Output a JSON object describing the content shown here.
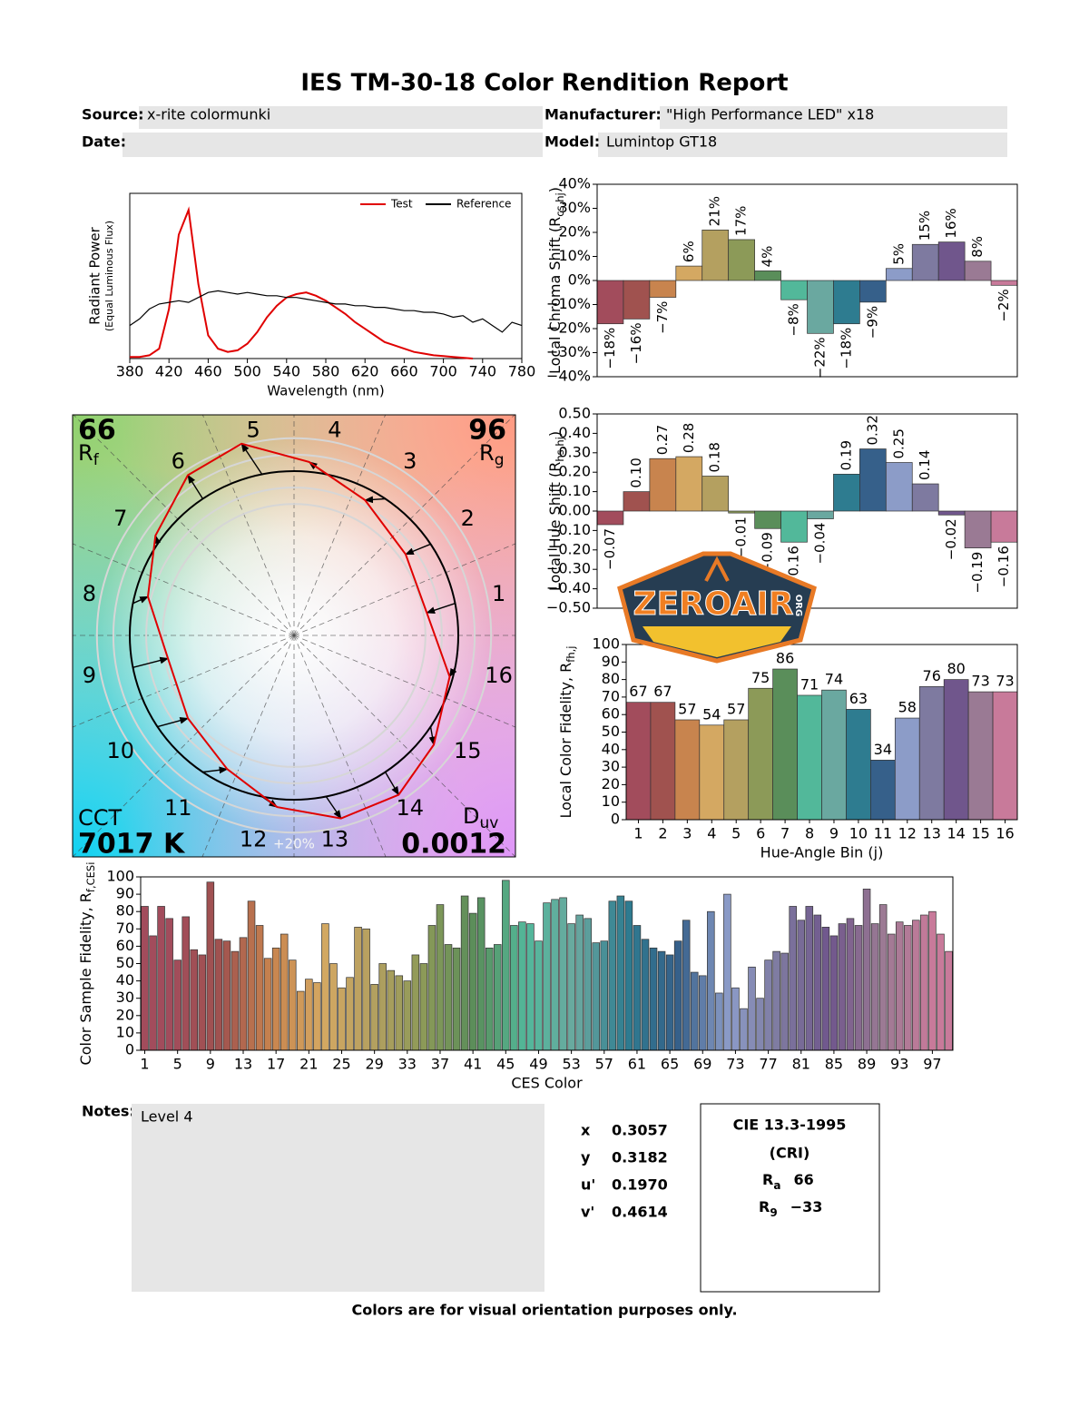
{
  "title": "IES TM-30-18 Color Rendition Report",
  "header": {
    "source_label": "Source:",
    "source": "x-rite colormunki",
    "manufacturer_label": "Manufacturer:",
    "manufacturer": "\"High Performance LED\" x18",
    "date_label": "Date:",
    "model_label": "Model:",
    "model": "Lumintop GT18"
  },
  "chart_data": [
    {
      "type": "line",
      "x": [
        380,
        390,
        400,
        410,
        420,
        430,
        440,
        450,
        460,
        470,
        480,
        490,
        500,
        510,
        520,
        530,
        540,
        550,
        560,
        570,
        580,
        590,
        600,
        610,
        620,
        630,
        640,
        650,
        660,
        670,
        680,
        690,
        700,
        710,
        720,
        730,
        740,
        750,
        760,
        770,
        780
      ],
      "series": [
        {
          "name": "Test",
          "color": "#e00000",
          "values": [
            0.01,
            0.01,
            0.02,
            0.06,
            0.3,
            0.75,
            0.9,
            0.45,
            0.14,
            0.06,
            0.04,
            0.05,
            0.09,
            0.16,
            0.25,
            0.32,
            0.37,
            0.39,
            0.4,
            0.38,
            0.35,
            0.31,
            0.27,
            0.22,
            0.18,
            0.14,
            0.1,
            0.08,
            0.06,
            0.04,
            0.03,
            0.02,
            0.015,
            0.01,
            0.005,
            0,
            null,
            null,
            null,
            null,
            null
          ]
        },
        {
          "name": "Reference",
          "color": "#000000",
          "values": [
            0.2,
            0.24,
            0.3,
            0.33,
            0.34,
            0.35,
            0.34,
            0.37,
            0.4,
            0.41,
            0.4,
            0.39,
            0.4,
            0.39,
            0.38,
            0.38,
            0.37,
            0.37,
            0.36,
            0.35,
            0.34,
            0.33,
            0.33,
            0.32,
            0.32,
            0.31,
            0.31,
            0.3,
            0.29,
            0.29,
            0.28,
            0.28,
            0.27,
            0.25,
            0.26,
            0.22,
            0.24,
            0.2,
            0.16,
            0.22,
            0.2
          ]
        }
      ],
      "xlim": [
        380,
        780
      ],
      "xticks": [
        380,
        420,
        460,
        500,
        540,
        580,
        620,
        660,
        700,
        740,
        780
      ],
      "ylim": [
        0,
        1
      ],
      "xlabel": "Wavelength (nm)",
      "ylabel": "Radiant Power",
      "ylabel2": "(Equal Luminous Flux)",
      "legend": "upper right"
    },
    {
      "type": "vector",
      "rf": 66,
      "rf_label": "R",
      "rf_sub": "f",
      "rg": 96,
      "rg_label": "R",
      "rg_sub": "g",
      "cct_label": "CCT",
      "cct": "7017 K",
      "duv_label": "D",
      "duv_sub": "uv",
      "duv": 0.0012,
      "scale_label": "+20%"
    },
    {
      "type": "bar",
      "values": [
        -18,
        -16,
        -7,
        6,
        21,
        17,
        4,
        -8,
        -22,
        -18,
        -9,
        5,
        15,
        16,
        8,
        -2
      ],
      "value_labels": [
        "−18%",
        "−16%",
        "−7%",
        "6%",
        "21%",
        "17%",
        "4%",
        "−8%",
        "−22%",
        "−18%",
        "−9%",
        "5%",
        "15%",
        "16%",
        "8%",
        "−2%"
      ],
      "ylim": [
        -40,
        40
      ],
      "yticks": [
        {
          "value": -40,
          "label": "−40%"
        },
        {
          "value": -30,
          "label": "−30%"
        },
        {
          "value": -20,
          "label": "−20%"
        },
        {
          "value": -10,
          "label": "−10%"
        },
        {
          "value": 0,
          "label": "0%"
        },
        {
          "value": 10,
          "label": "10%"
        },
        {
          "value": 20,
          "label": "20%"
        },
        {
          "value": 30,
          "label": "30%"
        },
        {
          "value": 40,
          "label": "40%"
        }
      ],
      "ylabel": "Local Chroma Shift (R",
      "ylabel_sub": "cs,hj",
      "ylabel_end": ")"
    },
    {
      "type": "bar",
      "values": [
        -0.07,
        0.1,
        0.27,
        0.28,
        0.18,
        -0.01,
        -0.09,
        -0.16,
        -0.04,
        0.19,
        0.32,
        0.25,
        0.14,
        -0.02,
        -0.19,
        -0.16
      ],
      "value_labels": [
        "−0.07",
        "0.10",
        "0.27",
        "0.28",
        "0.18",
        "−0.01",
        "−0.09",
        "−0.16",
        "−0.04",
        "0.19",
        "0.32",
        "0.25",
        "0.14",
        "−0.02",
        "−0.19",
        "−0.16"
      ],
      "ylim": [
        -0.5,
        0.5
      ],
      "yticks": [
        {
          "value": -0.5,
          "label": "−0.50"
        },
        {
          "value": -0.4,
          "label": "−0.40"
        },
        {
          "value": -0.3,
          "label": "−0.30"
        },
        {
          "value": -0.2,
          "label": "−0.20"
        },
        {
          "value": -0.1,
          "label": "−0.10"
        },
        {
          "value": 0,
          "label": "0.00"
        },
        {
          "value": 0.1,
          "label": "0.10"
        },
        {
          "value": 0.2,
          "label": "0.20"
        },
        {
          "value": 0.3,
          "label": "0.30"
        },
        {
          "value": 0.4,
          "label": "0.40"
        },
        {
          "value": 0.5,
          "label": "0.50"
        }
      ],
      "ylabel": "Local Hue Shift (R",
      "ylabel_sub": "hs,hj",
      "ylabel_end": ")"
    },
    {
      "type": "bar",
      "categories": [
        1,
        2,
        3,
        4,
        5,
        6,
        7,
        8,
        9,
        10,
        11,
        12,
        13,
        14,
        15,
        16
      ],
      "values": [
        67,
        67,
        57,
        54,
        57,
        75,
        86,
        71,
        74,
        63,
        34,
        58,
        76,
        80,
        73,
        73
      ],
      "colors": [
        "#a24c5c",
        "#a0524f",
        "#c8844e",
        "#d4a862",
        "#b4a060",
        "#8c9a58",
        "#5a8e5a",
        "#52b89a",
        "#6aa8a0",
        "#2e7c90",
        "#36608a",
        "#8c9cc8",
        "#7e7aa0",
        "#70568c",
        "#9a7a94",
        "#c87a9a"
      ],
      "ylim": [
        0,
        100
      ],
      "yticks": [
        0,
        10,
        20,
        30,
        40,
        50,
        60,
        70,
        80,
        90,
        100
      ],
      "xlabel": "Hue-Angle Bin (j)",
      "ylabel": "Local Color Fidelity, R",
      "ylabel_sub": "fh,j"
    },
    {
      "type": "bar",
      "categories": [
        1,
        null,
        null,
        null,
        5,
        null,
        null,
        null,
        9,
        null,
        null,
        null,
        13,
        null,
        null,
        null,
        17,
        null,
        null,
        null,
        21,
        null,
        null,
        null,
        25,
        null,
        null,
        null,
        29,
        null,
        null,
        null,
        33,
        null,
        null,
        null,
        37,
        null,
        null,
        null,
        41,
        null,
        null,
        null,
        45,
        null,
        null,
        null,
        49,
        null,
        null,
        null,
        53,
        null,
        null,
        null,
        57,
        null,
        null,
        null,
        61,
        null,
        null,
        null,
        65,
        null,
        null,
        null,
        69,
        null,
        null,
        null,
        73,
        null,
        null,
        null,
        77,
        null,
        null,
        null,
        81,
        null,
        null,
        null,
        85,
        null,
        null,
        null,
        89,
        null,
        null,
        null,
        93,
        null,
        null,
        null,
        97,
        null,
        null
      ],
      "values": [
        83,
        66,
        83,
        76,
        52,
        77,
        58,
        55,
        97,
        64,
        63,
        57,
        65,
        86,
        72,
        53,
        59,
        67,
        52,
        34,
        41,
        39,
        73,
        50,
        36,
        42,
        71,
        70,
        38,
        50,
        46,
        43,
        40,
        55,
        50,
        72,
        84,
        61,
        59,
        89,
        79,
        88,
        59,
        61,
        98,
        72,
        74,
        73,
        63,
        85,
        87,
        88,
        73,
        78,
        76,
        62,
        63,
        86,
        89,
        86,
        72,
        64,
        59,
        57,
        55,
        63,
        75,
        45,
        43,
        80,
        33,
        90,
        36,
        24,
        48,
        30,
        52,
        57,
        56,
        83,
        75,
        83,
        78,
        71,
        66,
        73,
        76,
        72,
        93,
        73,
        84,
        67,
        74,
        72,
        75,
        78,
        80,
        67,
        57
      ],
      "ylim": [
        0,
        100
      ],
      "yticks": [
        0,
        10,
        20,
        30,
        40,
        50,
        60,
        70,
        80,
        90,
        100
      ],
      "xlabel": "CES Color",
      "ylabel": "Color Sample Fidelity, R",
      "ylabel_sub": "f,CESi"
    }
  ],
  "notes": {
    "label": "Notes:",
    "text": "Level 4"
  },
  "chromaticity": [
    {
      "label": "x",
      "value": "0.3057"
    },
    {
      "label": "y",
      "value": "0.3182"
    },
    {
      "label": "u'",
      "value": "0.1970"
    },
    {
      "label": "v'",
      "value": "0.4614"
    }
  ],
  "cri": {
    "title": "CIE 13.3-1995",
    "subtitle": "(CRI)",
    "ra_label": "R",
    "ra_sub": "a",
    "ra": "66",
    "r9_label": "R",
    "r9_sub": "9",
    "r9": "−33"
  },
  "footer": "Colors are for visual orientation purposes only.",
  "watermark": {
    "text": "ZEROAIR",
    "sub": "ORG"
  }
}
